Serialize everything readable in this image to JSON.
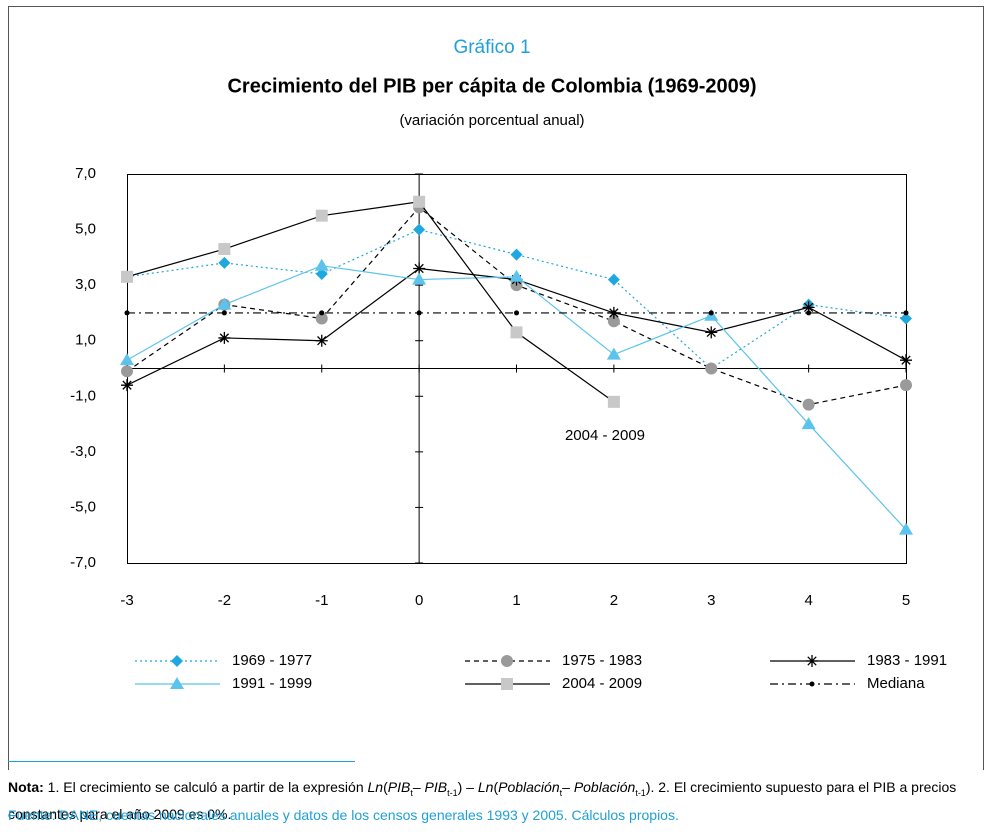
{
  "chart_data": {
    "type": "line",
    "title_label": "Gráfico 1",
    "title": "Crecimiento del PIB per cápita de Colombia (1969-2009)",
    "subtitle": "(variación porcentual anual)",
    "x": [
      -3,
      -2,
      -1,
      0,
      1,
      2,
      3,
      4,
      5
    ],
    "xlim": [
      -3,
      5
    ],
    "xticks": [
      -3,
      -2,
      -1,
      0,
      1,
      2,
      3,
      4,
      5
    ],
    "ylim": [
      -7,
      7
    ],
    "yticks": [
      {
        "value": -7,
        "label": "-7,0"
      },
      {
        "value": -5,
        "label": "-5,0"
      },
      {
        "value": -3,
        "label": "-3,0"
      },
      {
        "value": -1,
        "label": "-1,0"
      },
      {
        "value": 1,
        "label": "1,0"
      },
      {
        "value": 3,
        "label": "3,0"
      },
      {
        "value": 5,
        "label": "5,0"
      },
      {
        "value": 7,
        "label": "7,0"
      }
    ],
    "series": [
      {
        "name": "1969 - 1977",
        "color": "#1fa8e0",
        "line_color": "#1fa8e0",
        "line_style": "dotted",
        "marker": "diamond",
        "values": [
          3.3,
          3.8,
          3.4,
          5.0,
          4.1,
          3.2,
          0.0,
          2.3,
          1.8
        ]
      },
      {
        "name": "1975 - 1983",
        "color": "#9a9a9a",
        "line_color": "#000000",
        "line_style": "dashed",
        "marker": "circle",
        "values": [
          -0.1,
          2.3,
          1.8,
          5.8,
          3.0,
          1.7,
          0.0,
          -1.3,
          -0.6
        ]
      },
      {
        "name": "1983 - 1991",
        "color": "#000000",
        "line_color": "#000000",
        "line_style": "solid",
        "marker": "star",
        "values": [
          -0.6,
          1.1,
          1.0,
          3.6,
          3.2,
          2.0,
          1.3,
          2.2,
          0.3
        ]
      },
      {
        "name": "1991 - 1999",
        "color": "#5cc4ec",
        "line_color": "#5cc4ec",
        "line_style": "solid",
        "marker": "triangle",
        "values": [
          0.3,
          2.3,
          3.7,
          3.2,
          3.3,
          0.5,
          1.9,
          -2.0,
          -5.8
        ]
      },
      {
        "name": "2004 - 2009",
        "color": "#c8c8c8",
        "line_color": "#000000",
        "line_style": "solid",
        "marker": "square",
        "values": [
          3.3,
          4.3,
          5.5,
          6.0,
          1.3,
          -1.2,
          null,
          null,
          null
        ]
      },
      {
        "name": "Mediana",
        "color": "#000000",
        "line_color": "#000000",
        "line_style": "dashdot",
        "marker": "dot",
        "values": [
          2.0,
          2.0,
          2.0,
          2.0,
          2.0,
          2.0,
          2.0,
          2.0,
          2.0
        ]
      }
    ],
    "annotation": "2004 - 2009"
  },
  "note": {
    "label": "Nota:",
    "parts": [
      "1. El crecimiento se calculó a partir de la expresión ",
      "Ln",
      "(",
      "PIB",
      "t",
      "– ",
      "PIB",
      "t-1",
      ") – ",
      "Ln",
      "(",
      "Población",
      "t",
      "– ",
      "Población",
      "t-1",
      "). 2. El crecimiento supuesto para el PIB a precios constantes para el año 2009 es 0%."
    ],
    "italic": [
      1,
      3,
      6,
      9,
      11,
      14
    ],
    "sub": [
      4,
      7,
      12,
      15
    ]
  },
  "source": "Fuente: DANE, cuentas nacionales anuales y datos de los censos generales 1993 y 2005. Cálculos propios."
}
